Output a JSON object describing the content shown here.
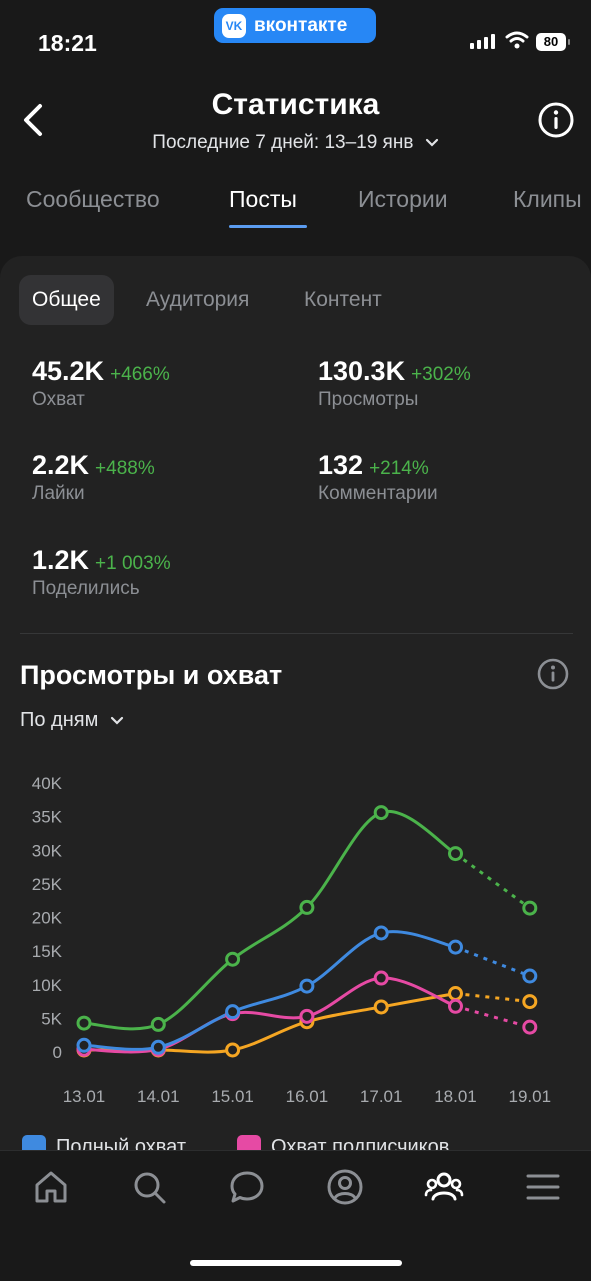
{
  "status_bar": {
    "time": "18:21",
    "app_pill": "вконтакте",
    "battery": "80"
  },
  "header": {
    "title": "Статистика",
    "subtitle": "Последние 7 дней: 13–19 янв"
  },
  "tabs": [
    {
      "label": "Сообщество"
    },
    {
      "label": "Посты"
    },
    {
      "label": "Истории"
    },
    {
      "label": "Клипы"
    }
  ],
  "segments": [
    {
      "label": "Общее"
    },
    {
      "label": "Аудитория"
    },
    {
      "label": "Контент"
    }
  ],
  "metrics": [
    {
      "value": "45.2K",
      "delta": "+466%",
      "label": "Охват"
    },
    {
      "value": "130.3K",
      "delta": "+302%",
      "label": "Просмотры"
    },
    {
      "value": "2.2K",
      "delta": "+488%",
      "label": "Лайки"
    },
    {
      "value": "132",
      "delta": "+214%",
      "label": "Комментарии"
    },
    {
      "value": "1.2K",
      "delta": "+1 003%",
      "label": "Поделились"
    }
  ],
  "chart_section": {
    "title": "Просмотры и охват",
    "period": "По дням"
  },
  "chart_data": {
    "type": "line",
    "x": [
      "13.01",
      "14.01",
      "15.01",
      "16.01",
      "17.01",
      "18.01",
      "19.01"
    ],
    "y_ticks": [
      "40K",
      "35K",
      "30K",
      "25K",
      "20K",
      "15K",
      "10K",
      "5K",
      "0"
    ],
    "ylim": [
      0,
      40000
    ],
    "grid": false,
    "series": [
      {
        "name": "",
        "color": "#4bb34b",
        "values": [
          4300,
          4100,
          13800,
          21500,
          35600,
          29500,
          21400
        ]
      },
      {
        "name": "Полный охват",
        "color": "#3f8ae0",
        "values": [
          1000,
          700,
          6000,
          9800,
          17700,
          15600,
          11300
        ]
      },
      {
        "name": "Охват подписчиков",
        "color": "#e64aa4",
        "values": [
          400,
          400,
          5700,
          5300,
          11000,
          6800,
          3700
        ]
      },
      {
        "name": "",
        "color": "#f5a623",
        "values": [
          300,
          300,
          300,
          4500,
          6700,
          8700,
          7500
        ]
      }
    ],
    "dashed_from_index": 5
  },
  "legend": [
    {
      "label": "Полный охват",
      "color": "#3f8ae0"
    },
    {
      "label": "Охват подписчиков",
      "color": "#e64aa4"
    }
  ],
  "nav": [
    "home-icon",
    "search-icon",
    "messages-icon",
    "profile-icon",
    "community-icon",
    "menu-icon"
  ]
}
